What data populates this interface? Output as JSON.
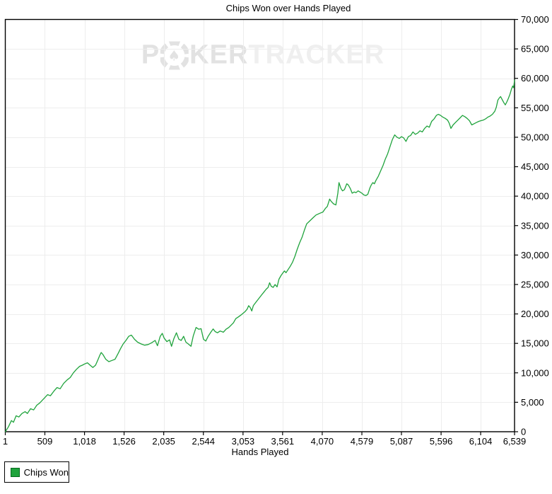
{
  "chart_data": {
    "type": "line",
    "title": "Chips Won over Hands Played",
    "xlabel": "Hands Played",
    "ylabel": "",
    "xlim": [
      1,
      6539
    ],
    "ylim": [
      0,
      70000
    ],
    "grid": true,
    "legend_position": "bottom-left",
    "y_axis_side": "right",
    "x_ticks": {
      "values": [
        1,
        509,
        1018,
        1526,
        2035,
        2544,
        3053,
        3561,
        4070,
        4579,
        5087,
        5596,
        6104,
        6539
      ],
      "labels": [
        "1",
        "509",
        "1,018",
        "1,526",
        "2,035",
        "2,544",
        "3,053",
        "3,561",
        "4,070",
        "4,579",
        "5,087",
        "5,596",
        "6,104",
        "6,539"
      ]
    },
    "y_ticks": {
      "values": [
        0,
        5000,
        10000,
        15000,
        20000,
        25000,
        30000,
        35000,
        40000,
        45000,
        50000,
        55000,
        60000,
        65000,
        70000
      ],
      "labels": [
        "0",
        "5,000",
        "10,000",
        "15,000",
        "20,000",
        "25,000",
        "30,000",
        "35,000",
        "40,000",
        "45,000",
        "50,000",
        "55,000",
        "60,000",
        "65,000",
        "70,000"
      ]
    },
    "series": [
      {
        "name": "Chips Won",
        "color": "#1fa33c",
        "points": [
          [
            1,
            0
          ],
          [
            40,
            800
          ],
          [
            80,
            1900
          ],
          [
            105,
            1600
          ],
          [
            140,
            2700
          ],
          [
            175,
            2500
          ],
          [
            215,
            3100
          ],
          [
            255,
            3400
          ],
          [
            285,
            3100
          ],
          [
            325,
            3900
          ],
          [
            365,
            3700
          ],
          [
            405,
            4500
          ],
          [
            445,
            4900
          ],
          [
            480,
            5400
          ],
          [
            509,
            5800
          ],
          [
            545,
            6300
          ],
          [
            580,
            6100
          ],
          [
            625,
            6900
          ],
          [
            665,
            7500
          ],
          [
            705,
            7300
          ],
          [
            750,
            8200
          ],
          [
            795,
            8800
          ],
          [
            835,
            9200
          ],
          [
            875,
            10000
          ],
          [
            915,
            10600
          ],
          [
            955,
            11100
          ],
          [
            990,
            11300
          ],
          [
            1018,
            11500
          ],
          [
            1055,
            11700
          ],
          [
            1090,
            11300
          ],
          [
            1125,
            10900
          ],
          [
            1160,
            11300
          ],
          [
            1190,
            12200
          ],
          [
            1215,
            13000
          ],
          [
            1232,
            13450
          ],
          [
            1255,
            13100
          ],
          [
            1290,
            12300
          ],
          [
            1330,
            11900
          ],
          [
            1370,
            12100
          ],
          [
            1410,
            12300
          ],
          [
            1450,
            13300
          ],
          [
            1480,
            14100
          ],
          [
            1510,
            14800
          ],
          [
            1526,
            15100
          ],
          [
            1550,
            15500
          ],
          [
            1585,
            16200
          ],
          [
            1620,
            16400
          ],
          [
            1660,
            15700
          ],
          [
            1700,
            15200
          ],
          [
            1745,
            14900
          ],
          [
            1790,
            14700
          ],
          [
            1835,
            14800
          ],
          [
            1880,
            15100
          ],
          [
            1925,
            15500
          ],
          [
            1955,
            14600
          ],
          [
            1990,
            16200
          ],
          [
            2016,
            16700
          ],
          [
            2040,
            15900
          ],
          [
            2075,
            15300
          ],
          [
            2110,
            15600
          ],
          [
            2135,
            14500
          ],
          [
            2165,
            15800
          ],
          [
            2198,
            16800
          ],
          [
            2230,
            15700
          ],
          [
            2260,
            15500
          ],
          [
            2290,
            16200
          ],
          [
            2320,
            15200
          ],
          [
            2350,
            14900
          ],
          [
            2385,
            14500
          ],
          [
            2415,
            16300
          ],
          [
            2450,
            17700
          ],
          [
            2485,
            17400
          ],
          [
            2515,
            17500
          ],
          [
            2545,
            15700
          ],
          [
            2575,
            15400
          ],
          [
            2605,
            16200
          ],
          [
            2640,
            16900
          ],
          [
            2670,
            17450
          ],
          [
            2695,
            17000
          ],
          [
            2725,
            16800
          ],
          [
            2760,
            17100
          ],
          [
            2800,
            16900
          ],
          [
            2835,
            17400
          ],
          [
            2870,
            17700
          ],
          [
            2900,
            18100
          ],
          [
            2930,
            18500
          ],
          [
            2960,
            19200
          ],
          [
            2995,
            19500
          ],
          [
            3025,
            19800
          ],
          [
            3053,
            20100
          ],
          [
            3080,
            20400
          ],
          [
            3105,
            20800
          ],
          [
            3125,
            21400
          ],
          [
            3145,
            21100
          ],
          [
            3165,
            20500
          ],
          [
            3185,
            21400
          ],
          [
            3220,
            22000
          ],
          [
            3255,
            22600
          ],
          [
            3290,
            23200
          ],
          [
            3320,
            23700
          ],
          [
            3350,
            24200
          ],
          [
            3375,
            24500
          ],
          [
            3395,
            25300
          ],
          [
            3415,
            24700
          ],
          [
            3440,
            24500
          ],
          [
            3465,
            25000
          ],
          [
            3490,
            24600
          ],
          [
            3515,
            25900
          ],
          [
            3540,
            26500
          ],
          [
            3561,
            26900
          ],
          [
            3585,
            27300
          ],
          [
            3605,
            27000
          ],
          [
            3630,
            27500
          ],
          [
            3660,
            28100
          ],
          [
            3690,
            28800
          ],
          [
            3720,
            29800
          ],
          [
            3750,
            31000
          ],
          [
            3780,
            32100
          ],
          [
            3810,
            33000
          ],
          [
            3840,
            34200
          ],
          [
            3870,
            35300
          ],
          [
            3910,
            35800
          ],
          [
            3950,
            36300
          ],
          [
            3990,
            36800
          ],
          [
            4040,
            37100
          ],
          [
            4078,
            37300
          ],
          [
            4110,
            37900
          ],
          [
            4135,
            38250
          ],
          [
            4165,
            39500
          ],
          [
            4185,
            39100
          ],
          [
            4215,
            38700
          ],
          [
            4245,
            38500
          ],
          [
            4270,
            40500
          ],
          [
            4285,
            42300
          ],
          [
            4310,
            41300
          ],
          [
            4330,
            40900
          ],
          [
            4355,
            41100
          ],
          [
            4385,
            42100
          ],
          [
            4405,
            41900
          ],
          [
            4430,
            41300
          ],
          [
            4455,
            40500
          ],
          [
            4480,
            40700
          ],
          [
            4505,
            40600
          ],
          [
            4530,
            40900
          ],
          [
            4555,
            40700
          ],
          [
            4579,
            40500
          ],
          [
            4605,
            40200
          ],
          [
            4630,
            40100
          ],
          [
            4655,
            40300
          ],
          [
            4680,
            41300
          ],
          [
            4700,
            41900
          ],
          [
            4720,
            42300
          ],
          [
            4740,
            42100
          ],
          [
            4760,
            42700
          ],
          [
            4790,
            43400
          ],
          [
            4820,
            44300
          ],
          [
            4850,
            45200
          ],
          [
            4880,
            46300
          ],
          [
            4910,
            47200
          ],
          [
            4940,
            48400
          ],
          [
            4970,
            49600
          ],
          [
            5000,
            50400
          ],
          [
            5030,
            50000
          ],
          [
            5060,
            49800
          ],
          [
            5087,
            50100
          ],
          [
            5115,
            49900
          ],
          [
            5145,
            49300
          ],
          [
            5175,
            50100
          ],
          [
            5205,
            50300
          ],
          [
            5235,
            50900
          ],
          [
            5265,
            50500
          ],
          [
            5295,
            50700
          ],
          [
            5325,
            51100
          ],
          [
            5355,
            50900
          ],
          [
            5385,
            51500
          ],
          [
            5415,
            51900
          ],
          [
            5445,
            51700
          ],
          [
            5475,
            52700
          ],
          [
            5505,
            53100
          ],
          [
            5535,
            53700
          ],
          [
            5560,
            53900
          ],
          [
            5590,
            53700
          ],
          [
            5620,
            53400
          ],
          [
            5650,
            53200
          ],
          [
            5680,
            52900
          ],
          [
            5700,
            52400
          ],
          [
            5722,
            51500
          ],
          [
            5750,
            52100
          ],
          [
            5780,
            52500
          ],
          [
            5810,
            52900
          ],
          [
            5840,
            53300
          ],
          [
            5870,
            53700
          ],
          [
            5900,
            53500
          ],
          [
            5930,
            53200
          ],
          [
            5960,
            52800
          ],
          [
            5990,
            52100
          ],
          [
            6020,
            52300
          ],
          [
            6050,
            52500
          ],
          [
            6080,
            52700
          ],
          [
            6104,
            52800
          ],
          [
            6135,
            52900
          ],
          [
            6165,
            53100
          ],
          [
            6195,
            53400
          ],
          [
            6225,
            53600
          ],
          [
            6255,
            53900
          ],
          [
            6285,
            54400
          ],
          [
            6305,
            55100
          ],
          [
            6325,
            56300
          ],
          [
            6345,
            56700
          ],
          [
            6360,
            56900
          ],
          [
            6380,
            56400
          ],
          [
            6400,
            55900
          ],
          [
            6420,
            55500
          ],
          [
            6440,
            56000
          ],
          [
            6460,
            56600
          ],
          [
            6480,
            57300
          ],
          [
            6500,
            58200
          ],
          [
            6515,
            58700
          ],
          [
            6527,
            58400
          ],
          [
            6539,
            59700
          ]
        ]
      }
    ]
  },
  "legend": {
    "label": "Chips Won",
    "swatch_color": "#1fa33c"
  },
  "watermark": {
    "part1": "P",
    "chip_icon": "poker-chip-spade",
    "part2": "KER",
    "part3": "TRACKER"
  },
  "colors": {
    "line": "#1fa33c",
    "grid": "#ededed",
    "axis": "#000000",
    "background": "#ffffff"
  }
}
